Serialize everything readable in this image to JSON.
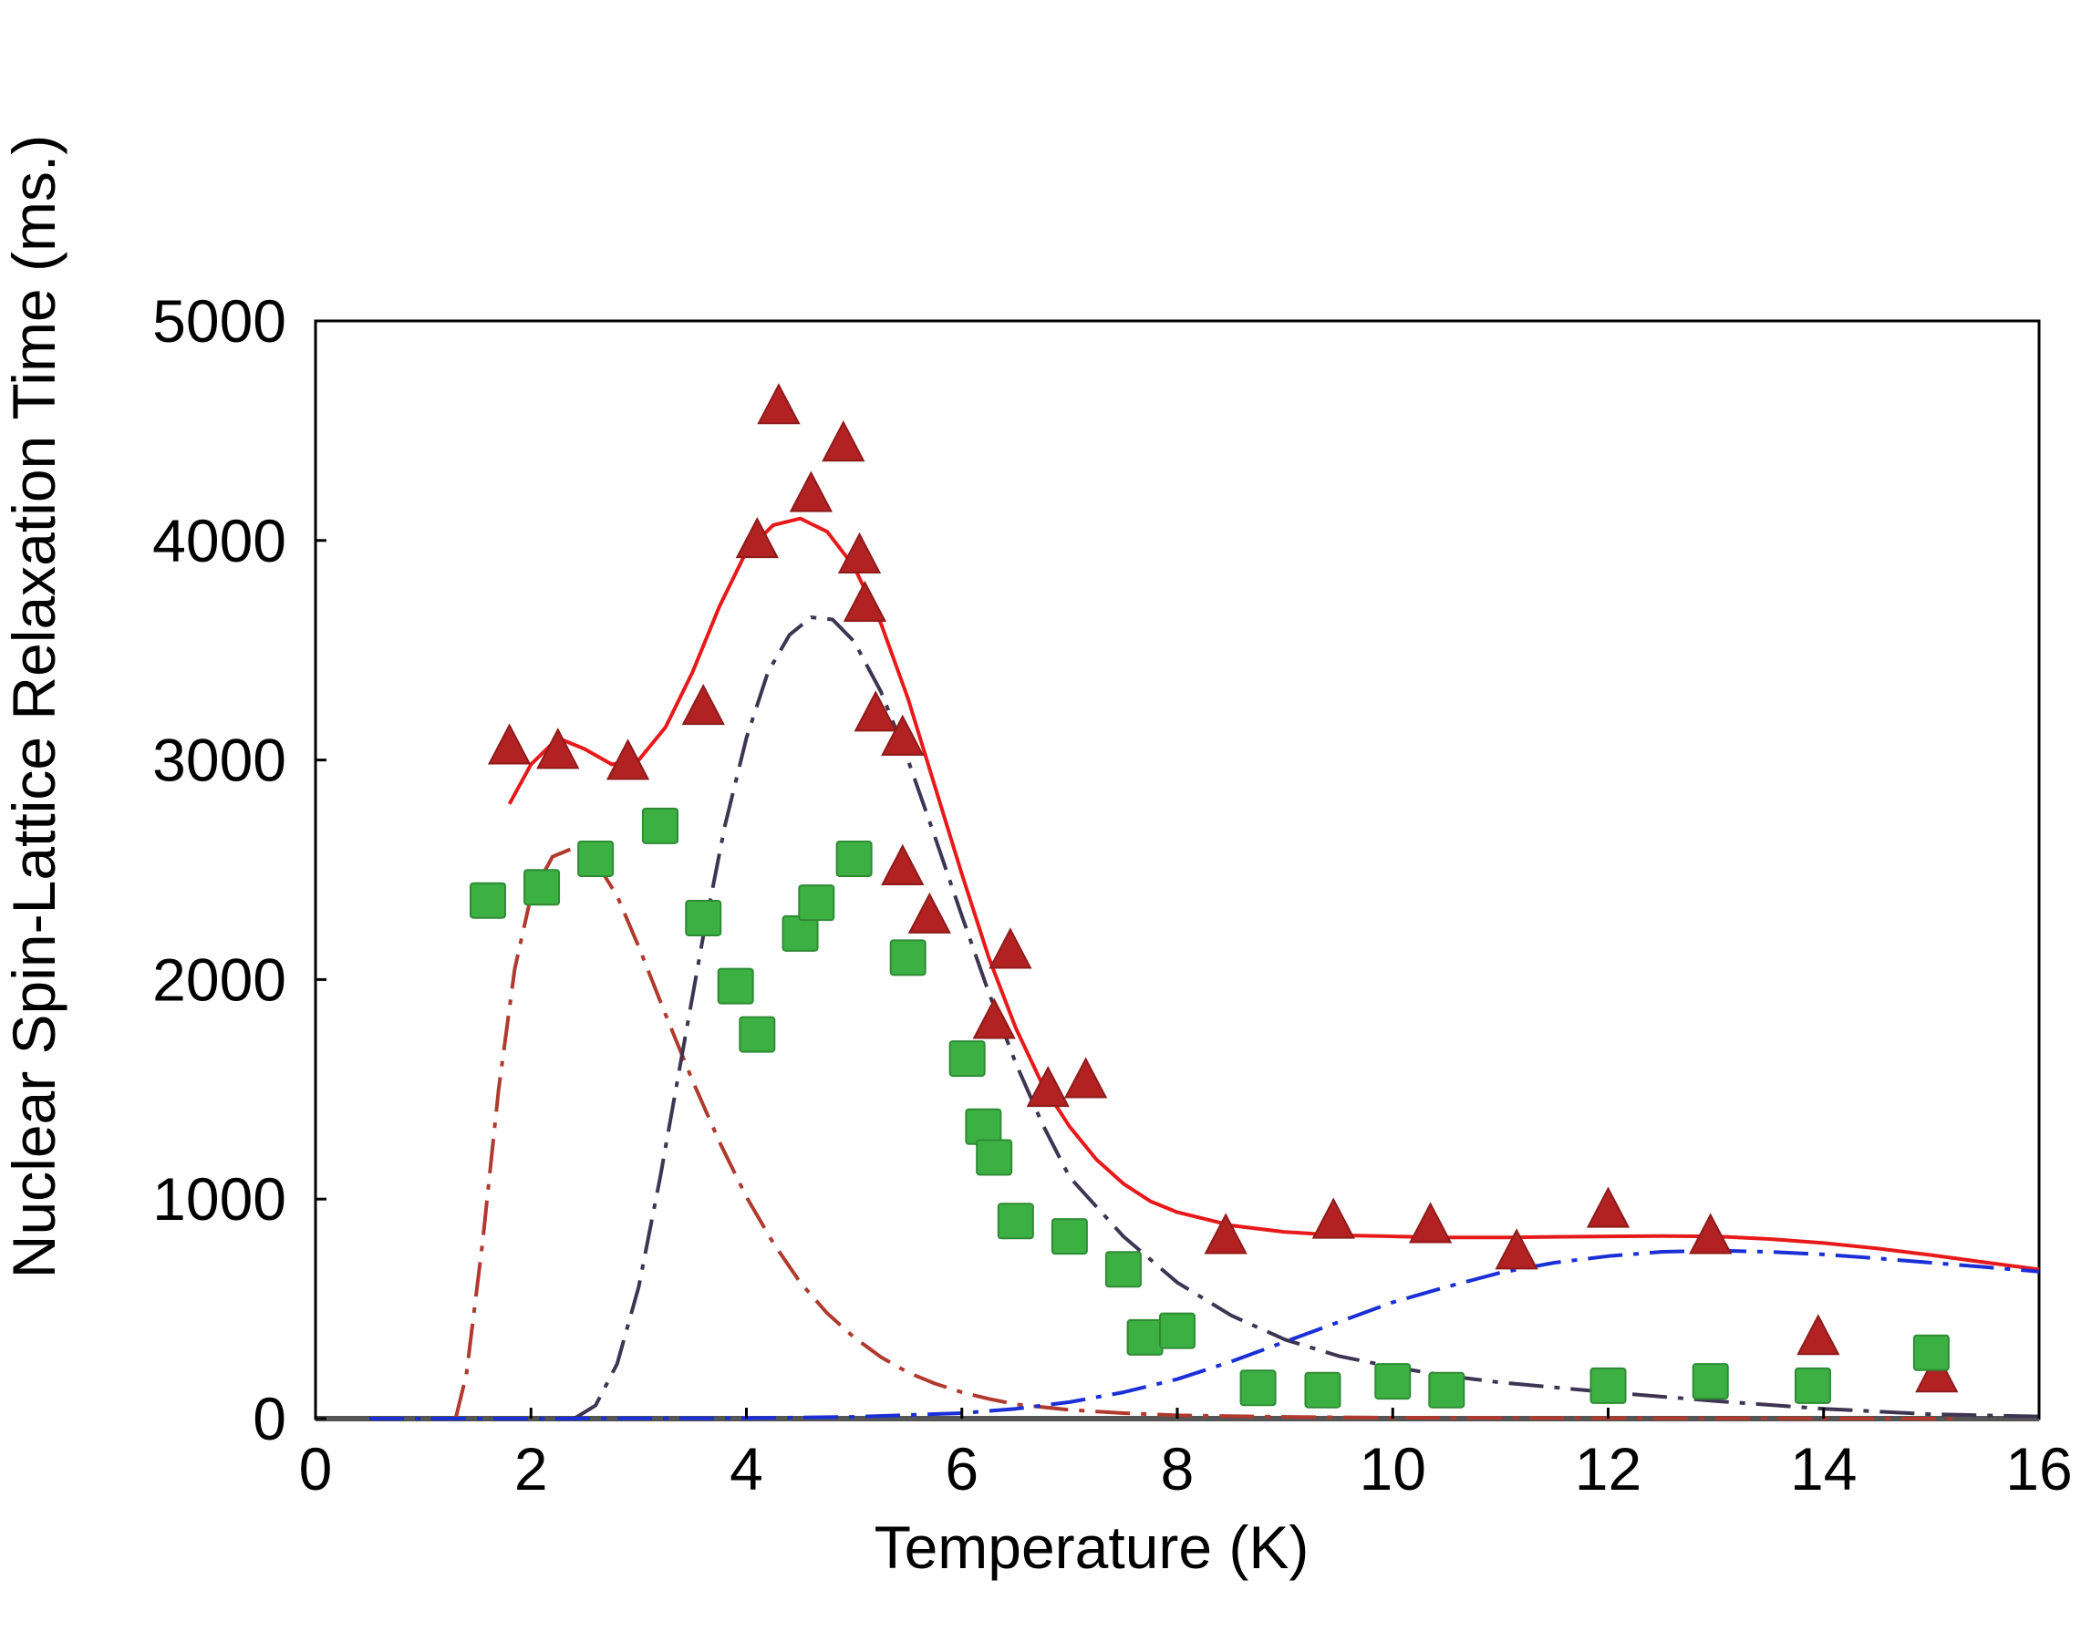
{
  "chart_data": {
    "type": "scatter",
    "title": "",
    "xlabel": "Temperature (K)",
    "ylabel": "Nuclear Spin-Lattice Relaxation Time (ms.)",
    "xlim": [
      0,
      16
    ],
    "ylim": [
      0,
      5000
    ],
    "xticks": [
      0,
      2,
      4,
      6,
      8,
      10,
      12,
      14,
      16
    ],
    "yticks": [
      0,
      1000,
      2000,
      3000,
      4000,
      5000
    ],
    "grid": false,
    "legend": "none",
    "series": [
      {
        "kind": "points",
        "marker": "triangle",
        "color": "#b22222",
        "points": [
          [
            1.8,
            3050
          ],
          [
            2.25,
            3030
          ],
          [
            2.9,
            2980
          ],
          [
            3.6,
            3230
          ],
          [
            4.1,
            3990
          ],
          [
            4.3,
            4600
          ],
          [
            4.6,
            4200
          ],
          [
            4.9,
            4430
          ],
          [
            5.05,
            3920
          ],
          [
            5.1,
            3700
          ],
          [
            5.2,
            3200
          ],
          [
            5.45,
            3090
          ],
          [
            5.45,
            2500
          ],
          [
            5.7,
            2280
          ],
          [
            6.3,
            1800
          ],
          [
            6.45,
            2120
          ],
          [
            6.8,
            1490
          ],
          [
            7.15,
            1530
          ],
          [
            8.45,
            820
          ],
          [
            9.45,
            890
          ],
          [
            10.35,
            870
          ],
          [
            11.15,
            750
          ],
          [
            12.0,
            940
          ],
          [
            12.95,
            820
          ],
          [
            13.95,
            360
          ],
          [
            15.05,
            190
          ]
        ]
      },
      {
        "kind": "points",
        "marker": "square",
        "color": "#3cb043",
        "points": [
          [
            1.6,
            2360
          ],
          [
            2.1,
            2420
          ],
          [
            2.6,
            2550
          ],
          [
            3.2,
            2700
          ],
          [
            3.6,
            2280
          ],
          [
            3.9,
            1970
          ],
          [
            4.1,
            1750
          ],
          [
            4.5,
            2210
          ],
          [
            4.65,
            2350
          ],
          [
            5.0,
            2550
          ],
          [
            5.5,
            2100
          ],
          [
            6.05,
            1640
          ],
          [
            6.2,
            1330
          ],
          [
            6.3,
            1190
          ],
          [
            6.5,
            900
          ],
          [
            7.0,
            830
          ],
          [
            7.5,
            680
          ],
          [
            7.7,
            370
          ],
          [
            8.0,
            400
          ],
          [
            8.75,
            140
          ],
          [
            9.35,
            130
          ],
          [
            10.0,
            170
          ],
          [
            10.5,
            130
          ],
          [
            12.0,
            150
          ],
          [
            12.95,
            170
          ],
          [
            13.9,
            150
          ],
          [
            15.0,
            300
          ]
        ]
      },
      {
        "kind": "curve",
        "style": "solid",
        "color": "#e8191a",
        "points": [
          [
            1.8,
            2800
          ],
          [
            2.0,
            2980
          ],
          [
            2.25,
            3100
          ],
          [
            2.5,
            3050
          ],
          [
            2.75,
            2980
          ],
          [
            3.0,
            3000
          ],
          [
            3.25,
            3150
          ],
          [
            3.5,
            3400
          ],
          [
            3.75,
            3700
          ],
          [
            4.0,
            3950
          ],
          [
            4.25,
            4070
          ],
          [
            4.5,
            4100
          ],
          [
            4.75,
            4040
          ],
          [
            5.0,
            3880
          ],
          [
            5.25,
            3620
          ],
          [
            5.5,
            3280
          ],
          [
            5.75,
            2880
          ],
          [
            6.0,
            2480
          ],
          [
            6.25,
            2100
          ],
          [
            6.5,
            1780
          ],
          [
            6.75,
            1520
          ],
          [
            7.0,
            1330
          ],
          [
            7.25,
            1180
          ],
          [
            7.5,
            1070
          ],
          [
            7.75,
            990
          ],
          [
            8.0,
            940
          ],
          [
            8.5,
            880
          ],
          [
            9.0,
            850
          ],
          [
            9.5,
            835
          ],
          [
            10.0,
            830
          ],
          [
            10.5,
            825
          ],
          [
            11.0,
            825
          ],
          [
            11.5,
            828
          ],
          [
            12.0,
            830
          ],
          [
            12.5,
            832
          ],
          [
            13.0,
            830
          ],
          [
            13.5,
            818
          ],
          [
            14.0,
            800
          ],
          [
            14.5,
            775
          ],
          [
            15.0,
            745
          ],
          [
            15.5,
            712
          ],
          [
            16.0,
            680
          ]
        ]
      },
      {
        "kind": "curve",
        "style": "dashdot",
        "color": "#b03a2e",
        "points": [
          [
            1.3,
            0
          ],
          [
            1.4,
            200
          ],
          [
            1.55,
            800
          ],
          [
            1.7,
            1500
          ],
          [
            1.85,
            2050
          ],
          [
            2.0,
            2380
          ],
          [
            2.2,
            2560
          ],
          [
            2.4,
            2600
          ],
          [
            2.6,
            2540
          ],
          [
            2.8,
            2380
          ],
          [
            3.0,
            2150
          ],
          [
            3.25,
            1840
          ],
          [
            3.5,
            1540
          ],
          [
            3.75,
            1260
          ],
          [
            4.0,
            1010
          ],
          [
            4.25,
            800
          ],
          [
            4.5,
            620
          ],
          [
            4.75,
            480
          ],
          [
            5.0,
            370
          ],
          [
            5.25,
            280
          ],
          [
            5.5,
            210
          ],
          [
            5.75,
            160
          ],
          [
            6.0,
            120
          ],
          [
            6.25,
            90
          ],
          [
            6.5,
            65
          ],
          [
            7.0,
            40
          ],
          [
            7.5,
            25
          ],
          [
            8.0,
            15
          ],
          [
            9.0,
            8
          ],
          [
            10.0,
            4
          ],
          [
            12.0,
            2
          ],
          [
            14.0,
            1
          ],
          [
            15.2,
            0
          ]
        ]
      },
      {
        "kind": "curve",
        "style": "dashdot",
        "color": "#3d3552",
        "points": [
          [
            2.4,
            0
          ],
          [
            2.6,
            60
          ],
          [
            2.8,
            250
          ],
          [
            3.0,
            600
          ],
          [
            3.2,
            1100
          ],
          [
            3.4,
            1650
          ],
          [
            3.6,
            2200
          ],
          [
            3.8,
            2700
          ],
          [
            4.0,
            3100
          ],
          [
            4.2,
            3400
          ],
          [
            4.4,
            3570
          ],
          [
            4.6,
            3650
          ],
          [
            4.8,
            3640
          ],
          [
            5.0,
            3540
          ],
          [
            5.25,
            3310
          ],
          [
            5.5,
            3000
          ],
          [
            5.75,
            2650
          ],
          [
            6.0,
            2290
          ],
          [
            6.25,
            1940
          ],
          [
            6.5,
            1620
          ],
          [
            6.75,
            1340
          ],
          [
            7.0,
            1100
          ],
          [
            7.5,
            830
          ],
          [
            8.0,
            620
          ],
          [
            8.5,
            470
          ],
          [
            9.0,
            360
          ],
          [
            9.5,
            285
          ],
          [
            10.0,
            235
          ],
          [
            10.5,
            195
          ],
          [
            11.0,
            165
          ],
          [
            12.0,
            120
          ],
          [
            13.0,
            80
          ],
          [
            14.0,
            45
          ],
          [
            15.0,
            20
          ],
          [
            16.0,
            10
          ]
        ]
      },
      {
        "kind": "curve",
        "style": "dashdot",
        "color": "#1a2fd6",
        "points": [
          [
            0.5,
            0
          ],
          [
            2.0,
            0
          ],
          [
            4.0,
            2
          ],
          [
            5.0,
            8
          ],
          [
            6.0,
            25
          ],
          [
            6.5,
            45
          ],
          [
            7.0,
            75
          ],
          [
            7.5,
            120
          ],
          [
            8.0,
            180
          ],
          [
            8.5,
            260
          ],
          [
            9.0,
            350
          ],
          [
            9.5,
            440
          ],
          [
            10.0,
            530
          ],
          [
            10.5,
            600
          ],
          [
            11.0,
            665
          ],
          [
            11.5,
            710
          ],
          [
            12.0,
            740
          ],
          [
            12.5,
            760
          ],
          [
            13.0,
            765
          ],
          [
            13.5,
            760
          ],
          [
            14.0,
            748
          ],
          [
            14.5,
            730
          ],
          [
            15.0,
            710
          ],
          [
            15.5,
            690
          ],
          [
            16.0,
            670
          ]
        ]
      }
    ]
  }
}
